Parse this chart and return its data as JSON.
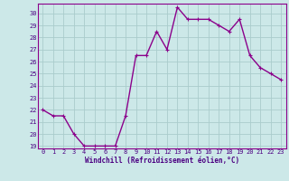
{
  "x": [
    0,
    1,
    2,
    3,
    4,
    5,
    6,
    7,
    8,
    9,
    10,
    11,
    12,
    13,
    14,
    15,
    16,
    17,
    18,
    19,
    20,
    21,
    22,
    23
  ],
  "y": [
    22,
    21.5,
    21.5,
    20,
    19,
    19,
    19,
    19,
    21.5,
    26.5,
    26.5,
    28.5,
    27,
    30.5,
    29.5,
    29.5,
    29.5,
    29,
    28.5,
    29.5,
    26.5,
    25.5,
    25,
    24.5
  ],
  "line_color": "#8B008B",
  "marker_color": "#8B008B",
  "bg_color": "#cce8e8",
  "grid_color": "#aacccc",
  "xlabel": "Windchill (Refroidissement éolien,°C)",
  "ylim_min": 19,
  "ylim_max": 31,
  "xlim_min": 0,
  "xlim_max": 23,
  "yticks": [
    19,
    20,
    21,
    22,
    23,
    24,
    25,
    26,
    27,
    28,
    29,
    30
  ],
  "xticks": [
    0,
    1,
    2,
    3,
    4,
    5,
    6,
    7,
    8,
    9,
    10,
    11,
    12,
    13,
    14,
    15,
    16,
    17,
    18,
    19,
    20,
    21,
    22,
    23
  ],
  "line_width": 1.0,
  "marker_size": 2.5,
  "tick_fontsize": 5,
  "xlabel_fontsize": 5.5
}
